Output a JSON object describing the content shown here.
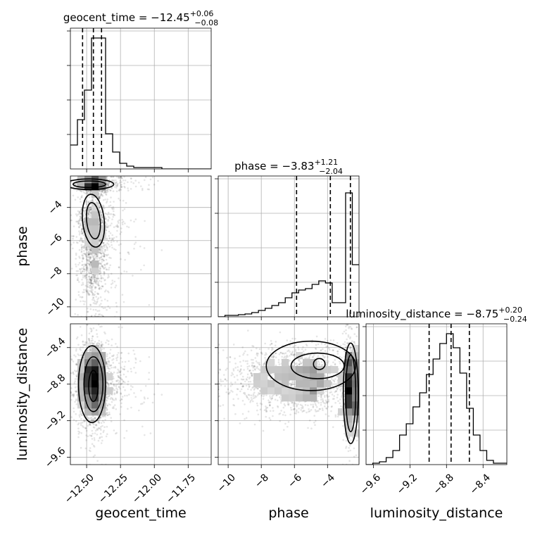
{
  "chart_data": {
    "type": "corner",
    "parameters": [
      "geocent_time",
      "phase",
      "luminosity_distance"
    ],
    "axis_labels": {
      "geocent_time": "geocent_time",
      "phase": "phase",
      "luminosity_distance": "luminosity_distance"
    },
    "ranges": {
      "geocent_time": [
        -12.62,
        -11.58
      ],
      "phase": [
        -10.6,
        -2.1
      ],
      "luminosity_distance": [
        -9.68,
        -8.14
      ]
    },
    "ticks": {
      "geocent_time": {
        "values": [
          -12.5,
          -12.25,
          -12.0,
          -11.75
        ],
        "labels": [
          "−12.50",
          "−12.25",
          "−12.00",
          "−11.75"
        ]
      },
      "phase": {
        "values": [
          -10,
          -8,
          -6,
          -4
        ],
        "labels": [
          "−10",
          "−8",
          "−6",
          "−4"
        ]
      },
      "luminosity_distance": {
        "values": [
          -9.6,
          -9.2,
          -8.8,
          -8.4
        ],
        "labels": [
          "−9.6",
          "−9.2",
          "−8.8",
          "−8.4"
        ]
      }
    },
    "titles": {
      "geocent_time": {
        "prefix": "geocent_time = ",
        "value": "−12.45",
        "plus": "+0.06",
        "minus": "−0.08"
      },
      "phase": {
        "prefix": "phase = ",
        "value": "−3.83",
        "plus": "+1.21",
        "minus": "−2.04"
      },
      "luminosity_distance": {
        "prefix": "luminosity_distance = ",
        "value": "−8.75",
        "plus": "+0.20",
        "minus": "−0.24"
      }
    },
    "quantiles": {
      "geocent_time": [
        -12.53,
        -12.45,
        -12.39
      ],
      "phase": [
        -5.87,
        -3.83,
        -2.62
      ],
      "luminosity_distance": [
        -8.99,
        -8.75,
        -8.55
      ]
    },
    "histograms": {
      "geocent_time": [
        0.17,
        0.35,
        0.56,
        0.93,
        0.93,
        0.25,
        0.12,
        0.04,
        0.02,
        0.01,
        0.01,
        0.01,
        0.01,
        0.0,
        0.0,
        0.0,
        0.0,
        0.0,
        0.0,
        0.0
      ],
      "phase": [
        0.0,
        0.01,
        0.01,
        0.015,
        0.02,
        0.03,
        0.045,
        0.06,
        0.08,
        0.1,
        0.135,
        0.17,
        0.19,
        0.2,
        0.23,
        0.255,
        0.24,
        0.1,
        0.1,
        0.88,
        0.37
      ],
      "luminosity_distance": [
        0.0,
        0.01,
        0.02,
        0.05,
        0.1,
        0.21,
        0.29,
        0.41,
        0.51,
        0.64,
        0.75,
        0.86,
        0.93,
        0.83,
        0.65,
        0.4,
        0.21,
        0.1,
        0.03,
        0.01,
        0.01
      ]
    },
    "grid": true,
    "scatter_color": "#000000"
  }
}
